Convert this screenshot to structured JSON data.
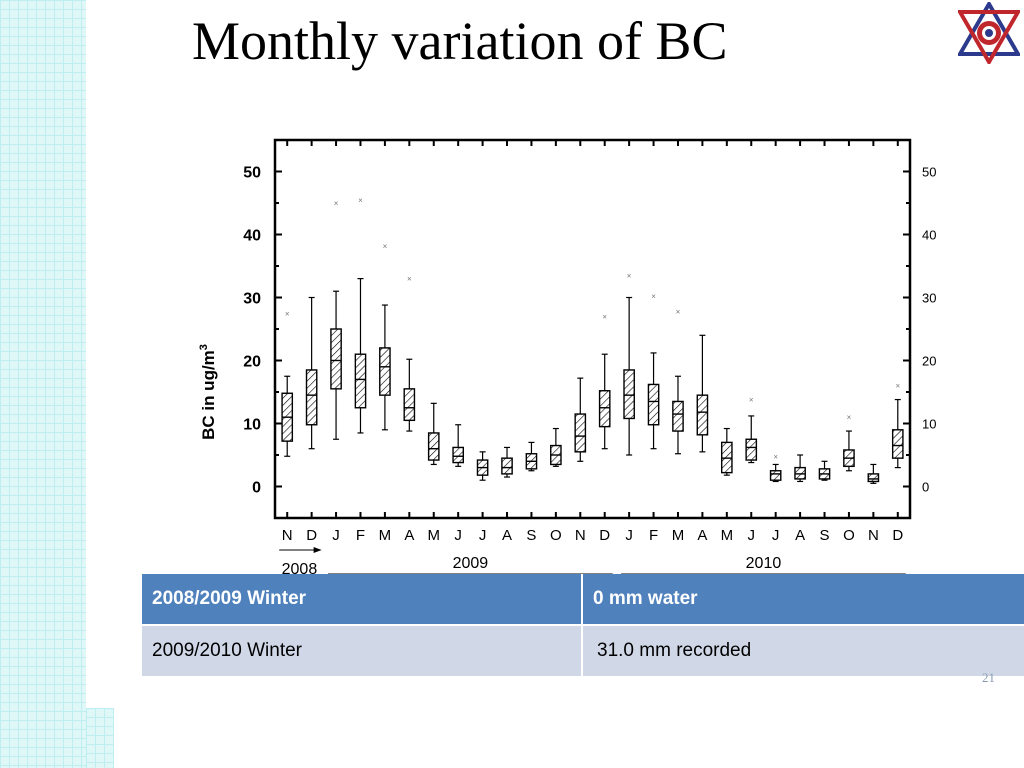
{
  "slide": {
    "title": "Monthly variation of BC",
    "page_number": "21"
  },
  "table": {
    "rows": [
      [
        "2008/2009 Winter",
        "0 mm water"
      ],
      [
        "2009/2010 Winter",
        "31.0 mm recorded"
      ]
    ]
  },
  "chart_data": {
    "type": "box",
    "ylabel": "BC in ug/m",
    "ylabel_superscript": "3",
    "ylim": [
      -5,
      55
    ],
    "yticks": [
      0,
      10,
      20,
      30,
      40,
      50
    ],
    "categories": [
      "N",
      "D",
      "J",
      "F",
      "M",
      "A",
      "M",
      "J",
      "J",
      "A",
      "S",
      "O",
      "N",
      "D",
      "J",
      "F",
      "M",
      "A",
      "M",
      "J",
      "J",
      "A",
      "S",
      "O",
      "N",
      "D"
    ],
    "year_labels": [
      {
        "label": "2008",
        "from_index": 0,
        "to_index": 1
      },
      {
        "label": "2009",
        "from_index": 2,
        "to_index": 13
      },
      {
        "label": "2010",
        "from_index": 14,
        "to_index": 25
      }
    ],
    "boxes": [
      {
        "min": 4.8,
        "q1": 7.2,
        "median": 11.0,
        "q3": 14.8,
        "max": 17.5,
        "outlier": 27.5
      },
      {
        "min": 6.0,
        "q1": 9.8,
        "median": 14.5,
        "q3": 18.5,
        "max": 30.0,
        "outlier": null
      },
      {
        "min": 7.5,
        "q1": 15.5,
        "median": 20.0,
        "q3": 25.0,
        "max": 31.0,
        "outlier": 45.0
      },
      {
        "min": 8.5,
        "q1": 12.5,
        "median": 17.0,
        "q3": 21.0,
        "max": 33.0,
        "outlier": 45.5
      },
      {
        "min": 9.0,
        "q1": 14.5,
        "median": 19.0,
        "q3": 22.0,
        "max": 28.8,
        "outlier": 38.2
      },
      {
        "min": 8.8,
        "q1": 10.5,
        "median": 12.5,
        "q3": 15.5,
        "max": 20.2,
        "outlier": 33.0
      },
      {
        "min": 3.5,
        "q1": 4.2,
        "median": 6.0,
        "q3": 8.5,
        "max": 13.2,
        "outlier": null
      },
      {
        "min": 3.2,
        "q1": 3.8,
        "median": 4.8,
        "q3": 6.2,
        "max": 9.8,
        "outlier": null
      },
      {
        "min": 1.0,
        "q1": 1.8,
        "median": 3.0,
        "q3": 4.2,
        "max": 5.5,
        "outlier": null
      },
      {
        "min": 1.5,
        "q1": 2.0,
        "median": 3.0,
        "q3": 4.5,
        "max": 6.2,
        "outlier": null
      },
      {
        "min": 2.5,
        "q1": 2.8,
        "median": 4.0,
        "q3": 5.2,
        "max": 7.0,
        "outlier": null
      },
      {
        "min": 3.2,
        "q1": 3.5,
        "median": 5.0,
        "q3": 6.5,
        "max": 9.2,
        "outlier": null
      },
      {
        "min": 4.0,
        "q1": 5.5,
        "median": 8.0,
        "q3": 11.5,
        "max": 17.2,
        "outlier": null
      },
      {
        "min": 6.0,
        "q1": 9.5,
        "median": 12.5,
        "q3": 15.2,
        "max": 21.0,
        "outlier": 27.0
      },
      {
        "min": 5.0,
        "q1": 10.8,
        "median": 14.5,
        "q3": 18.5,
        "max": 30.0,
        "outlier": 33.5
      },
      {
        "min": 6.0,
        "q1": 9.8,
        "median": 13.5,
        "q3": 16.2,
        "max": 21.2,
        "outlier": 30.2
      },
      {
        "min": 5.2,
        "q1": 8.8,
        "median": 11.5,
        "q3": 13.5,
        "max": 17.5,
        "outlier": 27.8
      },
      {
        "min": 5.5,
        "q1": 8.2,
        "median": 11.8,
        "q3": 14.5,
        "max": 24.0,
        "outlier": null
      },
      {
        "min": 1.8,
        "q1": 2.2,
        "median": 4.5,
        "q3": 7.0,
        "max": 9.2,
        "outlier": null
      },
      {
        "min": 3.8,
        "q1": 4.2,
        "median": 6.2,
        "q3": 7.5,
        "max": 11.2,
        "outlier": 13.8
      },
      {
        "min": 0.8,
        "q1": 1.0,
        "median": 2.0,
        "q3": 2.5,
        "max": 3.5,
        "outlier": 4.8
      },
      {
        "min": 0.8,
        "q1": 1.2,
        "median": 2.0,
        "q3": 3.0,
        "max": 5.0,
        "outlier": null
      },
      {
        "min": 1.0,
        "q1": 1.2,
        "median": 2.0,
        "q3": 2.8,
        "max": 4.0,
        "outlier": null
      },
      {
        "min": 2.5,
        "q1": 3.2,
        "median": 4.5,
        "q3": 5.8,
        "max": 8.8,
        "outlier": 11.0
      },
      {
        "min": 0.5,
        "q1": 0.8,
        "median": 1.2,
        "q3": 2.0,
        "max": 3.5,
        "outlier": null
      },
      {
        "min": 3.0,
        "q1": 4.5,
        "median": 6.5,
        "q3": 9.0,
        "max": 13.8,
        "outlier": 16.0
      }
    ],
    "grid": false,
    "legend": "none",
    "right_axis_mirrors_left": true,
    "box_fill": "diagonal-hatch",
    "colors": {
      "box": "#000000",
      "outlier": "#777777"
    }
  }
}
